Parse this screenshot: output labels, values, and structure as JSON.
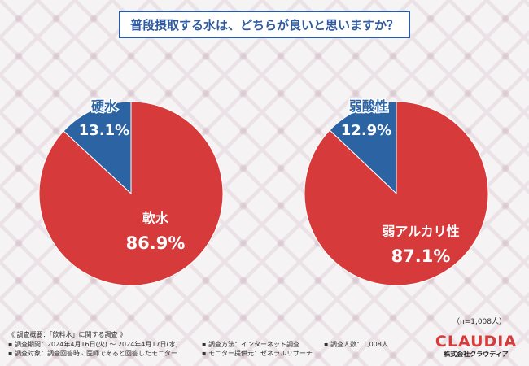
{
  "title": "普段摂取する水は、どちらが良いと思いますか？",
  "colors": {
    "red": "#d63a3a",
    "blue": "#2c64a3",
    "accent": "#2f5aa0"
  },
  "chart_data": [
    {
      "type": "pie",
      "slices": [
        {
          "label": "硬水",
          "value": 13.1,
          "display": "13.1%",
          "color": "#2c64a3"
        },
        {
          "label": "軟水",
          "value": 86.9,
          "display": "86.9%",
          "color": "#d63a3a"
        }
      ]
    },
    {
      "type": "pie",
      "slices": [
        {
          "label": "弱酸性",
          "value": 12.9,
          "display": "12.9%",
          "color": "#2c64a3"
        },
        {
          "label": "弱アルカリ性",
          "value": 87.1,
          "display": "87.1%",
          "color": "#d63a3a"
        }
      ]
    }
  ],
  "sample_size": "（n=1,008人）",
  "footer": {
    "overview": "《 調査概要：「飲料水」に関する調査 》",
    "period": "▪ 調査期間：2024年4月16日(火) ～ 2024年4月17日(水)",
    "method": "▪ 調査方法：インターネット調査",
    "count": "▪ 調査人数：1,008人",
    "target": "▪ 調査対象：調査回答時に医師であると回答したモニター",
    "provider": "▪ モニター提供元：ゼネラルリサーチ"
  },
  "logo": {
    "brand": "CLAUDIA",
    "corp": "株式会社クラウディア"
  }
}
